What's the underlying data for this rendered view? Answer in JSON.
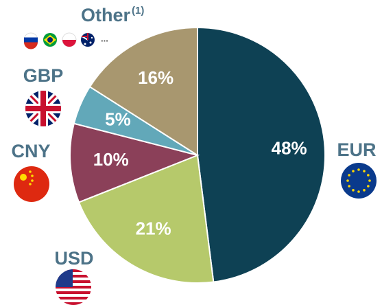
{
  "chart_data": {
    "type": "pie",
    "categories": [
      "EUR",
      "USD",
      "CNY",
      "GBP",
      "Other"
    ],
    "values": [
      48,
      21,
      10,
      5,
      16
    ],
    "value_labels": [
      "48%",
      "21%",
      "10%",
      "5%",
      "16%"
    ],
    "colors": [
      "#0e4154",
      "#b6c96b",
      "#8b4059",
      "#62a8b9",
      "#a8976f"
    ],
    "other_footnote": "(1)",
    "other_more": "..."
  }
}
